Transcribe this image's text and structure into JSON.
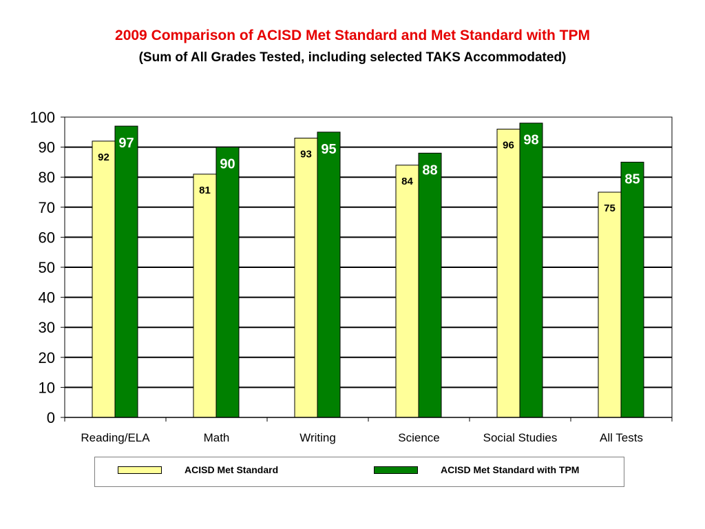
{
  "title": "2009 Comparison of ACISD Met Standard and Met Standard with TPM",
  "subtitle": "(Sum of All Grades Tested, including selected TAKS Accommodated)",
  "colors": {
    "title": "#e60000",
    "series_1": "#ffff99",
    "series_2": "#008000",
    "series_2_label_text": "#ffffff"
  },
  "chart_data": {
    "type": "bar",
    "categories": [
      "Reading/ELA",
      "Math",
      "Writing",
      "Science",
      "Social Studies",
      "All Tests"
    ],
    "series": [
      {
        "name": "ACISD Met Standard",
        "values": [
          92,
          81,
          93,
          84,
          96,
          75
        ]
      },
      {
        "name": "ACISD Met Standard with TPM",
        "values": [
          97,
          90,
          95,
          88,
          98,
          85
        ]
      }
    ],
    "xlabel": "",
    "ylabel": "",
    "ylim": [
      0,
      100
    ],
    "yticks": [
      0,
      10,
      20,
      30,
      40,
      50,
      60,
      70,
      80,
      90,
      100
    ],
    "grid": true,
    "legend_position": "bottom"
  },
  "legend": {
    "items": [
      {
        "label": "ACISD Met Standard",
        "color": "#ffff99"
      },
      {
        "label": "ACISD Met Standard with TPM",
        "color": "#008000"
      }
    ]
  }
}
